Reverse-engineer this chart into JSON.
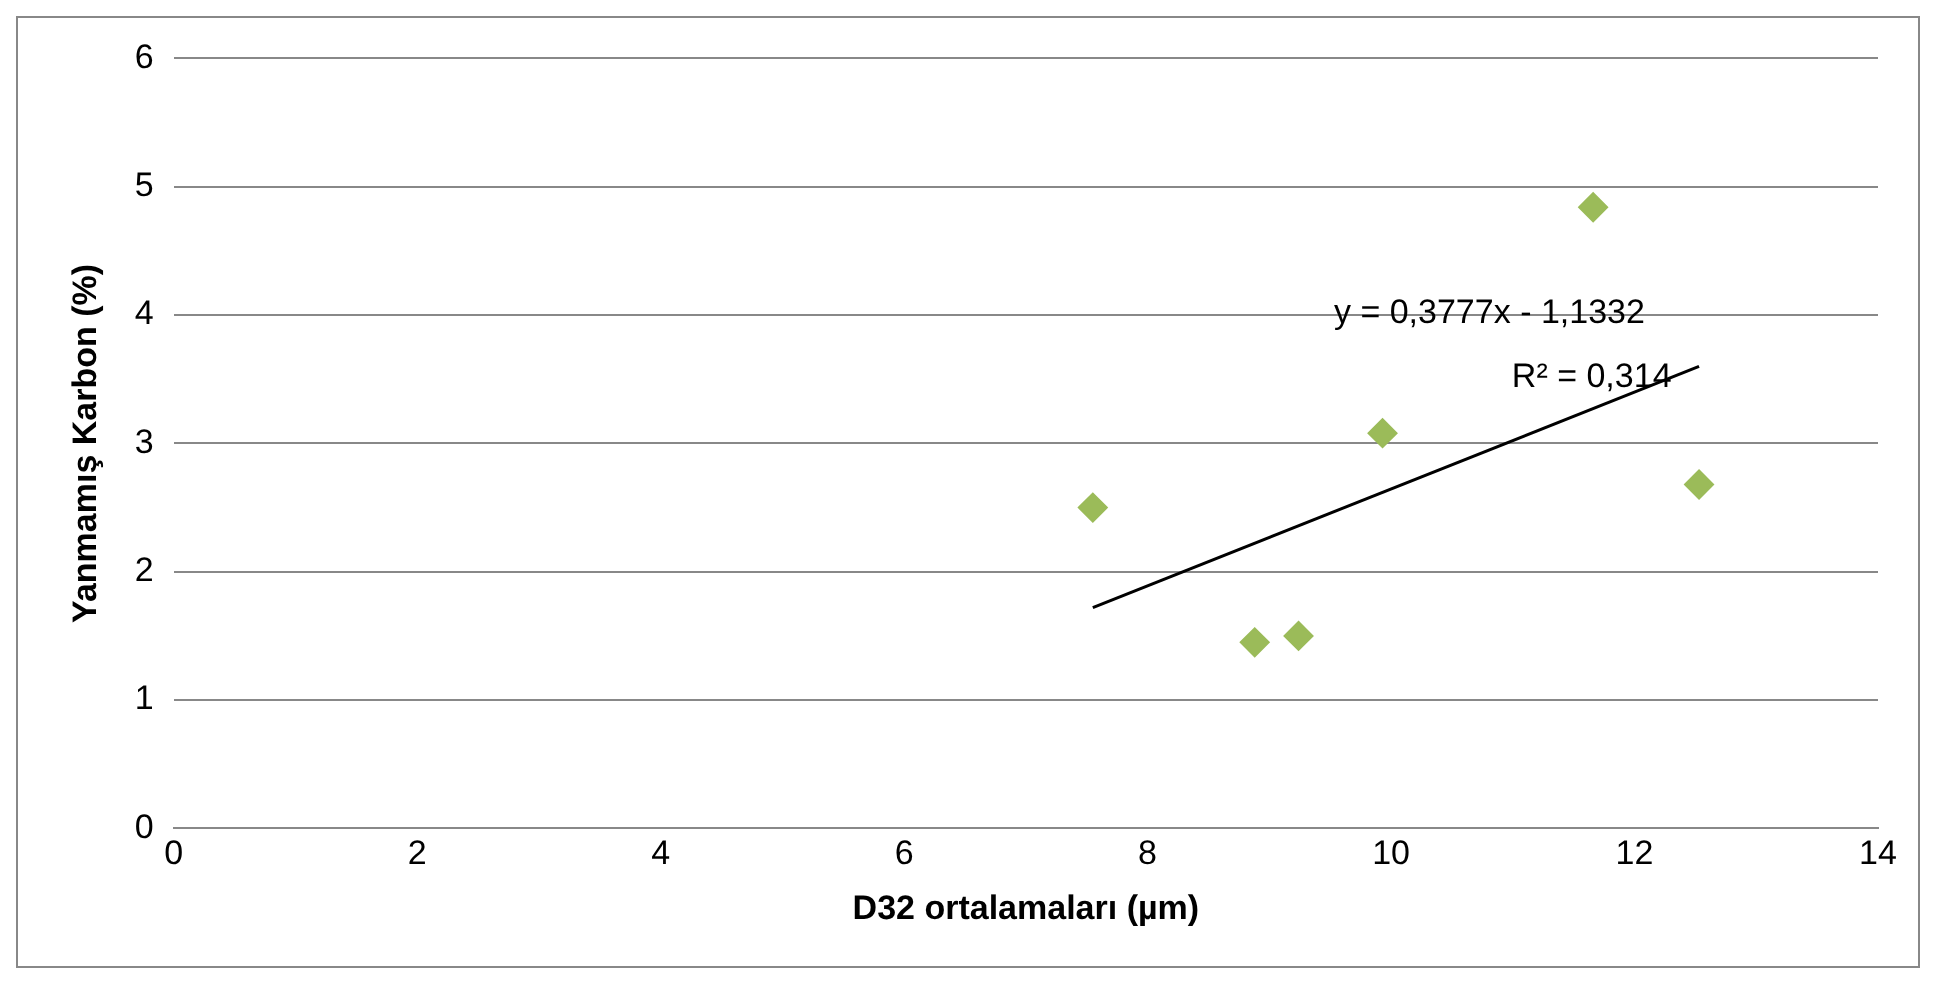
{
  "chart_data": {
    "type": "scatter",
    "xlabel": "D32 ortalamaları (µm)",
    "ylabel": "Yanmamış Karbon (%)",
    "x": [
      7.55,
      8.88,
      9.24,
      9.93,
      11.66,
      12.53
    ],
    "series": [
      {
        "color": "#9bbb59",
        "values": [
          2.5,
          1.45,
          1.5,
          3.08,
          4.84,
          2.68
        ]
      },
      {
        "type": "line",
        "color": "#000000",
        "x": [
          7.55,
          12.53
        ],
        "values": [
          1.72,
          3.6
        ],
        "marker": "none"
      }
    ],
    "xlim": [
      0,
      14
    ],
    "xticks": [
      0,
      2,
      4,
      6,
      8,
      10,
      12,
      14
    ],
    "ylim": [
      0,
      6
    ],
    "yticks": [
      0,
      1,
      2,
      3,
      4,
      5,
      6
    ],
    "grid": "y",
    "legend": false,
    "marker": "diamond",
    "annotations": [
      "y = 0,3777x - 1,1332",
      "R² = 0,314"
    ]
  }
}
